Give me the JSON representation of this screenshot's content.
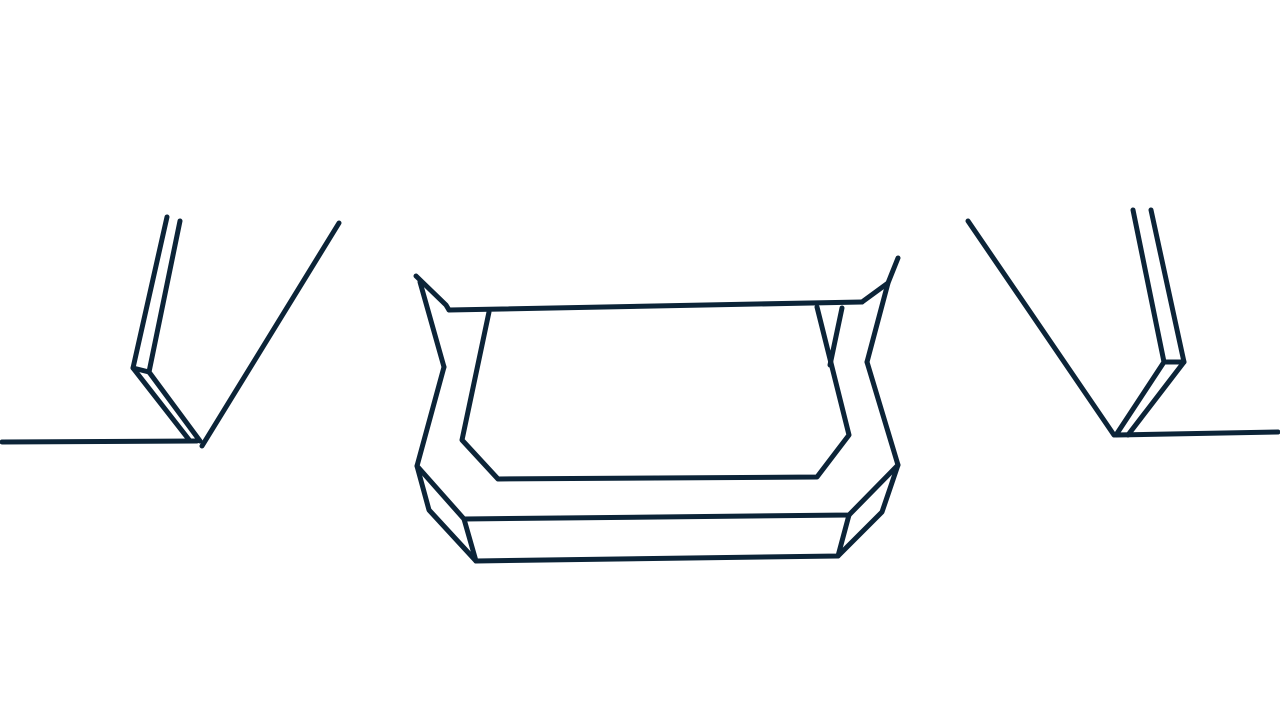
{
  "colors": {
    "background": "#ffffff",
    "stroke": "#0c2438"
  }
}
